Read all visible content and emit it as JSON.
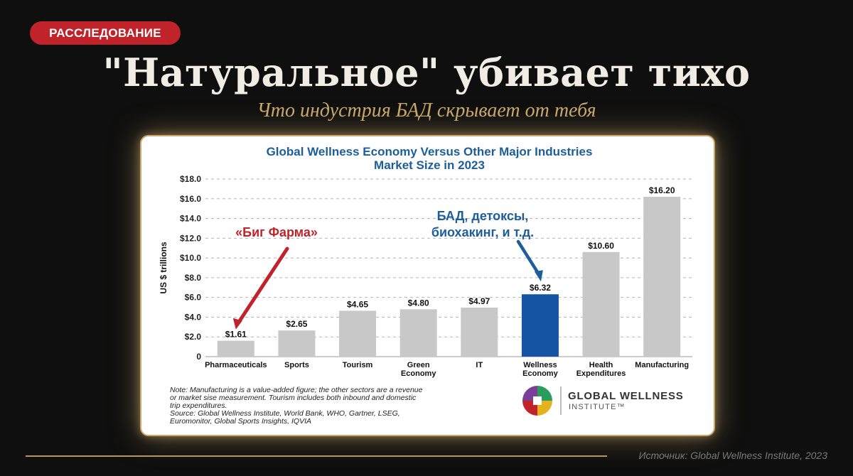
{
  "badge": "РАССЛЕДОВАНИЕ",
  "title": "\"Натуральное\" убивает тихо",
  "subtitle": "Что индустрия БАД скрывает от тебя",
  "source_caption": "Источник: Global Wellness Institute, 2023",
  "colors": {
    "background": "#0f0f0f",
    "badge": "#c0242a",
    "gold": "#c9a86a",
    "chart_title": "#1d5e9a",
    "bar_default": "#c8c8c8",
    "bar_highlight": "#1554a3",
    "pharma_annotation": "#c0242a",
    "wellness_annotation": "#1d5e9a"
  },
  "chart_data": {
    "type": "bar",
    "title": "Global Wellness Economy Versus Other Major Industries",
    "subtitle": "Market Size in 2023",
    "ylabel": "US $ trillions",
    "ylim": [
      0,
      18
    ],
    "yticks": [
      "0",
      "$2.0",
      "$4.0",
      "$6.0",
      "$8.0",
      "$10.0",
      "$12.0",
      "$14.0",
      "$16.0",
      "$18.0"
    ],
    "grid": true,
    "categories": [
      [
        "Pharmaceuticals"
      ],
      [
        "Sports"
      ],
      [
        "Tourism"
      ],
      [
        "Green",
        "Economy"
      ],
      [
        "IT"
      ],
      [
        "Wellness",
        "Economy"
      ],
      [
        "Health",
        "Expenditures"
      ],
      [
        "Manufacturing"
      ]
    ],
    "values": [
      1.61,
      2.65,
      4.65,
      4.8,
      4.97,
      6.32,
      10.6,
      16.2
    ],
    "value_labels": [
      "$1.61",
      "$2.65",
      "$4.65",
      "$4.80",
      "$4.97",
      "$6.32",
      "$10.60",
      "$16.20"
    ],
    "highlight_index": 5,
    "annotations": [
      {
        "text": [
          "«Биг Фарма»"
        ],
        "target": "Pharmaceuticals",
        "color": "red"
      },
      {
        "text": [
          "БАД, детоксы,",
          "биохакинг, и т.д."
        ],
        "target": "Wellness Economy",
        "color": "blue"
      }
    ],
    "note": [
      "Note: Manufacturing is a value-added figure; the other sectors are a revenue",
      "or market sise measurement. Tourism includes both inbound and domestic",
      "trip expenditures.",
      "Source: Global Wellness Institute, World Bank, WHO, Gartner, LSEG,",
      "Euromonitor, Global Sports Insights, IQVIA"
    ],
    "logo_text": "GLOBAL WELLNESS",
    "logo_subtext": "INSTITUTE™"
  }
}
